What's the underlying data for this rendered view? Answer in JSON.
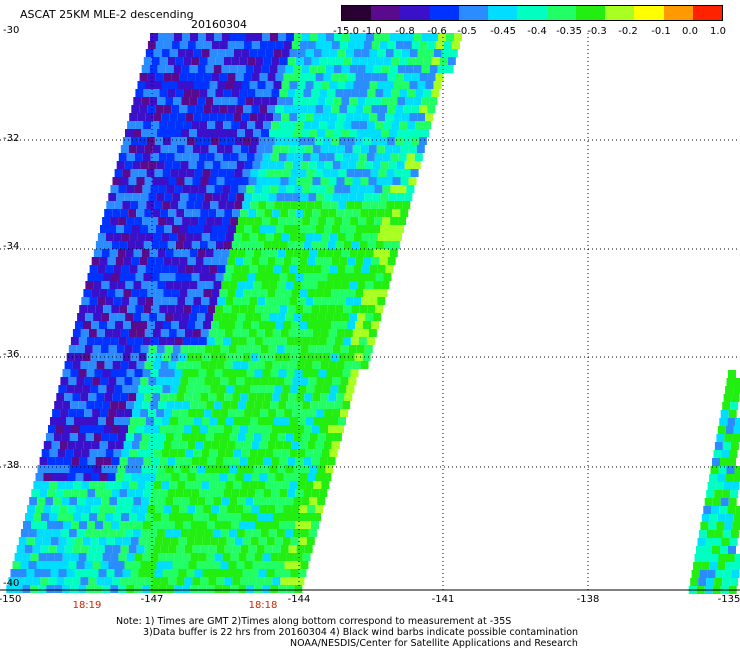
{
  "title": "ASCAT 25KM MLE-2 descending",
  "date": "20160304",
  "colorbar": {
    "labels": [
      "-15.0",
      "-1.0",
      "-0.8",
      "-0.6",
      "-0.5",
      "-0.45",
      "-0.4",
      "-0.35",
      "-0.3",
      "-0.2",
      "-0.1",
      "0.0",
      "1.0"
    ],
    "colors": [
      "#2a0033",
      "#5a0a8c",
      "#3a10c8",
      "#0033ff",
      "#2a8cff",
      "#00ddff",
      "#00ffc0",
      "#22ff66",
      "#22ee11",
      "#aaff22",
      "#ffff00",
      "#ff9900",
      "#ff2200"
    ]
  },
  "axes": {
    "y_ticks": [
      "-30",
      "-32",
      "-34",
      "-36",
      "-38",
      "-40"
    ],
    "x_ticks": [
      "-150",
      "-147",
      "-144",
      "-141",
      "-138",
      "-135"
    ]
  },
  "times": [
    "18:19",
    "18:18"
  ],
  "notes": {
    "line1": "Note: 1) Times are GMT 2)Times along bottom correspond to measurement at -35S",
    "line2": "3)Data buffer is 22 hrs from 20160304 4) Black wind barbs indicate possible contamination",
    "line3": "NOAA/NESDIS/Center for Satellite Applications and Research"
  }
}
